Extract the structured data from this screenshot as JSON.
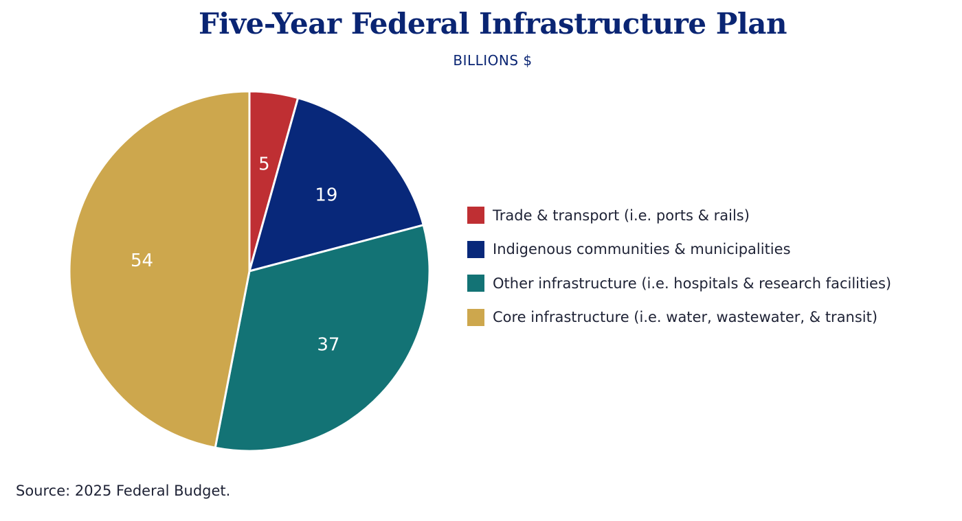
{
  "chart_data": {
    "type": "pie",
    "title": "Five-Year Federal Infrastructure Plan",
    "subtitle": "BILLIONS $",
    "categories": [
      "Trade & transport (i.e. ports & rails)",
      "Indigenous communities & municipalities",
      "Other infrastructure (i.e. hospitals & research facilities)",
      "Core infrastructure (i.e. water, wastewater, & transit)"
    ],
    "values": [
      5,
      19,
      37,
      54
    ],
    "colors": [
      "#bf2f33",
      "#08287a",
      "#137375",
      "#cda74d"
    ],
    "legend_position": "right",
    "start_angle": "12 o'clock",
    "direction": "clockwise"
  },
  "source": "Source: 2025 Federal Budget."
}
